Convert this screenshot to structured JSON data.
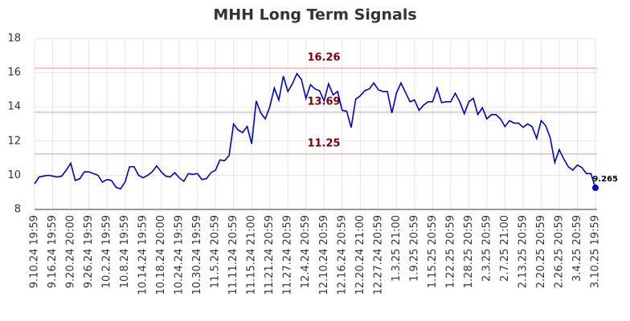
{
  "chart_data": {
    "type": "line",
    "title": "MHH Long Term Signals",
    "categories": [
      "9.10.24 19:59",
      null,
      null,
      null,
      "9.16.24 19:59",
      null,
      null,
      null,
      "9.20.24 20:00",
      null,
      null,
      null,
      "9.26.24 19:59",
      null,
      null,
      null,
      "10.2.24 19:59",
      null,
      null,
      null,
      "10.8.24 19:59",
      null,
      null,
      null,
      "10.14.24 19:59",
      null,
      null,
      null,
      "10.18.24 20:00",
      null,
      null,
      null,
      "10.24.24 19:59",
      null,
      null,
      null,
      "10.30.24 19:59",
      null,
      null,
      null,
      "11.5.24 20:59",
      null,
      null,
      null,
      "11.11.24 20:59",
      null,
      null,
      null,
      "11.15.24 21:00",
      null,
      null,
      null,
      "11.21.24 20:59",
      null,
      null,
      null,
      "11.27.24 20:59",
      null,
      null,
      null,
      "12.4.24 20:59",
      null,
      null,
      null,
      "12.10.24 20:59",
      null,
      null,
      null,
      "12.16.24 20:59",
      null,
      null,
      null,
      "12.20.24 21:00",
      null,
      null,
      null,
      "12.27.24 20:59",
      null,
      null,
      null,
      "1.3.25 21:00",
      null,
      null,
      null,
      "1.9.25 20:59",
      null,
      null,
      null,
      "1.15.25 20:59",
      null,
      null,
      null,
      "1.22.25 20:59",
      null,
      null,
      null,
      "1.28.25 20:59",
      null,
      null,
      null,
      "2.3.25 20:59",
      null,
      null,
      null,
      "2.7.25 21:00",
      null,
      null,
      null,
      "2.13.25 20:59",
      null,
      null,
      null,
      "2.20.25 20:59",
      null,
      null,
      null,
      "2.26.25 20:59",
      null,
      null,
      null,
      "3.4.25 20:59",
      null,
      null,
      null,
      "3.10.25 19:59"
    ],
    "series": [
      {
        "name": "MHH",
        "color": "#0000cc",
        "values": [
          9.5,
          9.9,
          9.95,
          10.0,
          9.95,
          9.9,
          9.95,
          10.3,
          10.7,
          9.7,
          9.8,
          10.2,
          10.2,
          10.1,
          10.0,
          9.6,
          9.75,
          9.7,
          9.3,
          9.2,
          9.6,
          10.5,
          10.5,
          10.0,
          9.85,
          10.0,
          10.2,
          10.55,
          10.2,
          9.95,
          9.9,
          10.15,
          9.85,
          9.65,
          10.1,
          10.05,
          10.1,
          9.75,
          9.8,
          10.15,
          10.3,
          10.9,
          10.85,
          11.15,
          13.0,
          12.65,
          12.5,
          12.85,
          11.85,
          14.35,
          13.65,
          13.3,
          14.0,
          15.1,
          14.4,
          15.8,
          14.9,
          15.35,
          15.95,
          15.6,
          14.5,
          15.3,
          15.05,
          14.95,
          14.35,
          15.35,
          14.7,
          14.9,
          13.8,
          13.75,
          12.8,
          14.45,
          14.65,
          14.95,
          15.05,
          15.4,
          15.0,
          14.9,
          14.9,
          13.65,
          14.8,
          15.4,
          14.85,
          14.3,
          14.4,
          13.8,
          14.1,
          14.3,
          14.3,
          15.1,
          14.25,
          14.3,
          14.3,
          14.8,
          14.3,
          13.6,
          14.3,
          14.5,
          13.55,
          13.95,
          13.3,
          13.55,
          13.55,
          13.3,
          12.85,
          13.2,
          13.05,
          13.05,
          12.8,
          13.0,
          12.85,
          12.15,
          13.2,
          12.9,
          12.2,
          10.75,
          11.5,
          10.95,
          10.5,
          10.3,
          10.6,
          10.45,
          10.1,
          10.1,
          9.265
        ]
      }
    ],
    "hlines": [
      16.26,
      13.69,
      11.25
    ],
    "ylim": [
      8,
      18
    ],
    "yticks": [
      8,
      10,
      12,
      14,
      16,
      18
    ],
    "grid": true
  }
}
